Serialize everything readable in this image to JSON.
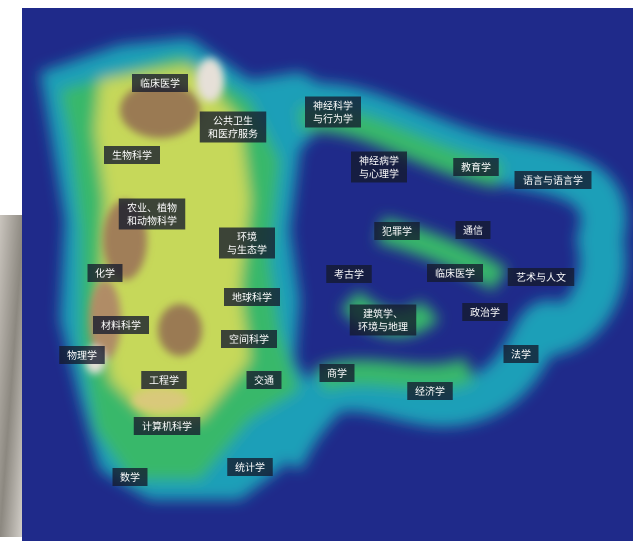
{
  "labels": [
    {
      "lines": [
        "临床医学"
      ]
    },
    {
      "lines": [
        "公共卫生",
        "和医疗服务"
      ]
    },
    {
      "lines": [
        "神经科学",
        "与行为学"
      ]
    },
    {
      "lines": [
        "生物科学"
      ]
    },
    {
      "lines": [
        "神经病学",
        "与心理学"
      ]
    },
    {
      "lines": [
        "教育学"
      ]
    },
    {
      "lines": [
        "语言与语言学"
      ]
    },
    {
      "lines": [
        "农业、植物",
        "和动物科学"
      ]
    },
    {
      "lines": [
        "环境",
        "与生态学"
      ]
    },
    {
      "lines": [
        "犯罪学"
      ]
    },
    {
      "lines": [
        "通信"
      ]
    },
    {
      "lines": [
        "化学"
      ]
    },
    {
      "lines": [
        "考古学"
      ]
    },
    {
      "lines": [
        "临床医学"
      ]
    },
    {
      "lines": [
        "艺术与人文"
      ]
    },
    {
      "lines": [
        "地球科学"
      ]
    },
    {
      "lines": [
        "建筑学、",
        "环境与地理"
      ]
    },
    {
      "lines": [
        "政治学"
      ]
    },
    {
      "lines": [
        "材料科学"
      ]
    },
    {
      "lines": [
        "空间科学"
      ]
    },
    {
      "lines": [
        "物理学"
      ]
    },
    {
      "lines": [
        "法学"
      ]
    },
    {
      "lines": [
        "工程学"
      ]
    },
    {
      "lines": [
        "交通"
      ]
    },
    {
      "lines": [
        "商学"
      ]
    },
    {
      "lines": [
        "经济学"
      ]
    },
    {
      "lines": [
        "计算机科学"
      ]
    },
    {
      "lines": [
        "统计学"
      ]
    },
    {
      "lines": [
        "数学"
      ]
    }
  ]
}
